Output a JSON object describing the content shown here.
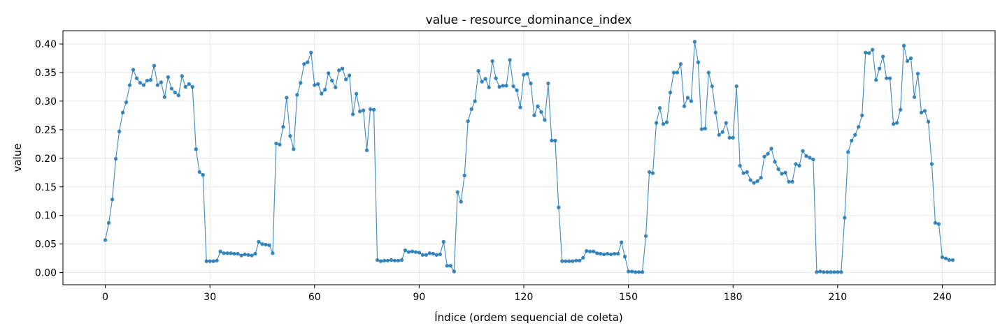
{
  "chart_data": {
    "type": "line",
    "title": "value - resource_dominance_index",
    "xlabel": "Índice (ordem sequencial de coleta)",
    "ylabel": "value",
    "xlim": [
      -12.15,
      255.15
    ],
    "ylim": [
      -0.0212,
      0.4232
    ],
    "xticks": [
      0,
      30,
      60,
      90,
      120,
      150,
      180,
      210,
      240
    ],
    "yticks": [
      0.0,
      0.05,
      0.1,
      0.15,
      0.2,
      0.25,
      0.3,
      0.35,
      0.4
    ],
    "ytick_labels": [
      "0.00",
      "0.05",
      "0.10",
      "0.15",
      "0.20",
      "0.25",
      "0.30",
      "0.35",
      "0.40"
    ],
    "grid": true,
    "line_color": "#1f77b4",
    "series": [
      {
        "x_start": 0,
        "values": [
          0.057,
          0.087,
          0.128,
          0.199,
          0.247,
          0.28,
          0.298,
          0.328,
          0.355,
          0.34,
          0.332,
          0.328,
          0.336,
          0.337,
          0.362,
          0.328,
          0.333,
          0.307,
          0.342,
          0.322,
          0.315,
          0.31,
          0.344,
          0.325,
          0.33,
          0.325,
          0.216,
          0.176,
          0.171,
          0.02,
          0.02,
          0.02,
          0.021,
          0.037,
          0.034,
          0.034,
          0.034,
          0.033,
          0.033,
          0.03,
          0.032,
          0.031,
          0.03,
          0.033,
          0.054,
          0.05,
          0.049,
          0.048,
          0.034,
          0.226,
          0.224,
          0.255,
          0.306,
          0.239,
          0.216,
          0.311,
          0.332,
          0.365,
          0.368,
          0.385,
          0.328,
          0.33,
          0.313,
          0.32,
          0.349,
          0.336,
          0.324,
          0.354,
          0.357,
          0.338,
          0.345,
          0.277,
          0.313,
          0.282,
          0.284,
          0.214,
          0.286,
          0.285,
          0.022,
          0.02,
          0.021,
          0.021,
          0.022,
          0.021,
          0.021,
          0.022,
          0.039,
          0.036,
          0.037,
          0.036,
          0.035,
          0.031,
          0.031,
          0.034,
          0.033,
          0.031,
          0.032,
          0.054,
          0.012,
          0.012,
          0.002,
          0.141,
          0.124,
          0.17,
          0.265,
          0.286,
          0.3,
          0.353,
          0.334,
          0.339,
          0.324,
          0.37,
          0.34,
          0.325,
          0.327,
          0.327,
          0.372,
          0.326,
          0.319,
          0.289,
          0.346,
          0.348,
          0.331,
          0.275,
          0.291,
          0.281,
          0.267,
          0.331,
          0.231,
          0.231,
          0.114,
          0.02,
          0.02,
          0.02,
          0.02,
          0.021,
          0.021,
          0.026,
          0.038,
          0.037,
          0.037,
          0.034,
          0.033,
          0.032,
          0.033,
          0.032,
          0.033,
          0.033,
          0.053,
          0.028,
          0.002,
          0.002,
          0.001,
          0.001,
          0.001,
          0.064,
          0.176,
          0.174,
          0.262,
          0.288,
          0.26,
          0.263,
          0.315,
          0.35,
          0.35,
          0.365,
          0.291,
          0.306,
          0.3,
          0.404,
          0.368,
          0.251,
          0.252,
          0.35,
          0.326,
          0.28,
          0.241,
          0.246,
          0.262,
          0.236,
          0.236,
          0.326,
          0.187,
          0.174,
          0.176,
          0.162,
          0.157,
          0.16,
          0.166,
          0.203,
          0.208,
          0.217,
          0.194,
          0.181,
          0.173,
          0.175,
          0.159,
          0.159,
          0.19,
          0.187,
          0.213,
          0.204,
          0.201,
          0.198,
          0.001,
          0.002,
          0.001,
          0.001,
          0.001,
          0.001,
          0.001,
          0.001,
          0.096,
          0.211,
          0.231,
          0.241,
          0.255,
          0.275,
          0.385,
          0.384,
          0.39,
          0.337,
          0.357,
          0.378,
          0.34,
          0.34,
          0.26,
          0.262,
          0.285,
          0.397,
          0.37,
          0.375,
          0.307,
          0.348,
          0.28,
          0.283,
          0.264,
          0.19,
          0.087,
          0.085,
          0.027,
          0.025,
          0.022,
          0.022
        ]
      }
    ]
  }
}
